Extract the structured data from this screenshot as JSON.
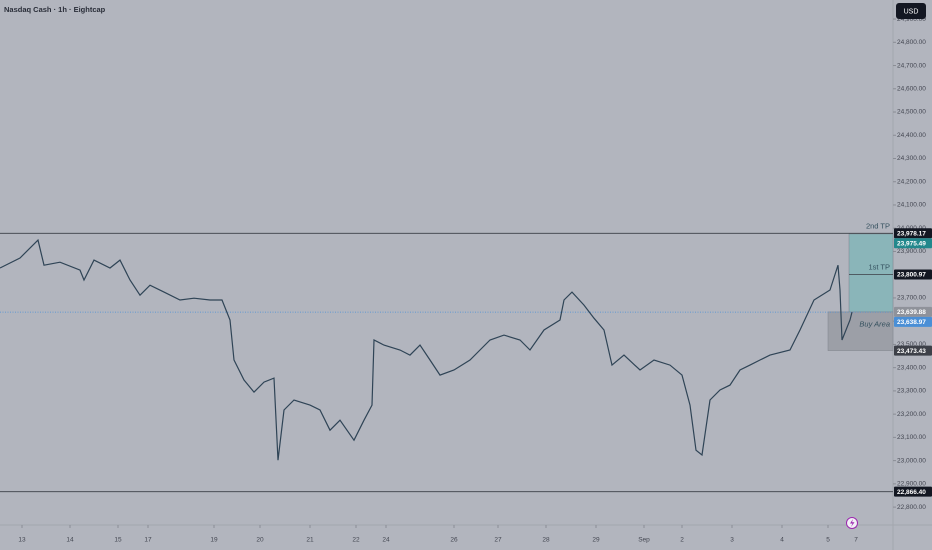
{
  "chart_data": {
    "type": "line",
    "title": "Nasdaq Cash · 1h · Eightcap",
    "currency_button": "USD",
    "color": "#2f4456",
    "x": [
      0,
      10,
      19,
      22,
      30,
      40,
      42,
      47,
      55,
      60,
      65,
      70,
      75,
      82,
      90,
      97,
      105,
      111,
      115,
      117,
      122,
      127,
      132,
      137,
      139,
      142,
      147,
      155,
      160,
      165,
      170,
      177,
      182,
      186,
      187,
      192,
      200,
      205,
      210,
      215,
      220,
      227,
      235,
      240,
      245,
      252,
      260,
      265,
      272,
      280,
      282,
      286,
      292,
      297,
      302,
      306,
      312,
      320,
      327,
      335,
      341,
      345,
      348,
      351,
      355,
      360,
      365,
      370,
      375,
      380,
      385,
      395,
      400,
      407,
      415,
      419,
      420,
      421,
      425,
      426
    ],
    "values": [
      23829,
      23872,
      23949,
      23841,
      23854,
      23820,
      23777,
      23863,
      23829,
      23863,
      23777,
      23712,
      23755,
      23725,
      23691,
      23699,
      23691,
      23691,
      23605,
      23433,
      23347,
      23295,
      23338,
      23355,
      23002,
      23218,
      23261,
      23239,
      23218,
      23131,
      23174,
      23088,
      23174,
      23239,
      23519,
      23497,
      23476,
      23454,
      23497,
      23433,
      23368,
      23390,
      23433,
      23476,
      23519,
      23540,
      23519,
      23476,
      23562,
      23605,
      23691,
      23725,
      23669,
      23613,
      23562,
      23411,
      23454,
      23390,
      23433,
      23411,
      23368,
      23239,
      23045,
      23024,
      23261,
      23304,
      23325,
      23390,
      23411,
      23433,
      23454,
      23476,
      23562,
      23691,
      23734,
      23841,
      23734,
      23519,
      23605,
      23639
    ],
    "xlim": [
      0,
      446.5
    ],
    "ylim": [
      22723,
      24982
    ],
    "xticks": [
      {
        "value": 11,
        "label": "13"
      },
      {
        "value": 35,
        "label": "14"
      },
      {
        "value": 59,
        "label": "15"
      },
      {
        "value": 74,
        "label": "17"
      },
      {
        "value": 107,
        "label": "19"
      },
      {
        "value": 130,
        "label": "20"
      },
      {
        "value": 155,
        "label": "21"
      },
      {
        "value": 178,
        "label": "22"
      },
      {
        "value": 193,
        "label": "24"
      },
      {
        "value": 227,
        "label": "26"
      },
      {
        "value": 249,
        "label": "27"
      },
      {
        "value": 273,
        "label": "28"
      },
      {
        "value": 298,
        "label": "29"
      },
      {
        "value": 322,
        "label": "Sep"
      },
      {
        "value": 341,
        "label": "2"
      },
      {
        "value": 366,
        "label": "3"
      },
      {
        "value": 391,
        "label": "4"
      },
      {
        "value": 414,
        "label": "5"
      },
      {
        "value": 428,
        "label": "7"
      }
    ],
    "yticks": [
      {
        "value": 22800,
        "label": "22,800.00"
      },
      {
        "value": 22900,
        "label": "22,900.00"
      },
      {
        "value": 23000,
        "label": "23,000.00"
      },
      {
        "value": 23100,
        "label": "23,100.00"
      },
      {
        "value": 23200,
        "label": "23,200.00"
      },
      {
        "value": 23300,
        "label": "23,300.00"
      },
      {
        "value": 23400,
        "label": "23,400.00"
      },
      {
        "value": 23500,
        "label": "23,500.00"
      },
      {
        "value": 23600,
        "label": "23,600.00"
      },
      {
        "value": 23700,
        "label": "23,700.00"
      },
      {
        "value": 23900,
        "label": "23,900.00"
      },
      {
        "value": 24000,
        "label": "24,000.00"
      },
      {
        "value": 24100,
        "label": "24,100.00"
      },
      {
        "value": 24200,
        "label": "24,200.00"
      },
      {
        "value": 24300,
        "label": "24,300.00"
      },
      {
        "value": 24400,
        "label": "24,400.00"
      },
      {
        "value": 24500,
        "label": "24,500.00"
      },
      {
        "value": 24600,
        "label": "24,600.00"
      },
      {
        "value": 24700,
        "label": "24,700.00"
      },
      {
        "value": 24800,
        "label": "24,800.00"
      },
      {
        "value": 24900,
        "label": "24,900.00"
      }
    ],
    "levels": [
      {
        "value": 23978.17,
        "label": "23,978.17",
        "color": "#131722",
        "line": "solid"
      },
      {
        "value": 23975.49,
        "label": "23,975.49",
        "color": "#22888c"
      },
      {
        "value": 23800.97,
        "label": "23,800.97",
        "color": "#131722",
        "line": "short"
      },
      {
        "value": 23639.88,
        "label": "23,639.88",
        "color": "#8f929a"
      },
      {
        "value": 23638.97,
        "label": "23,638.97",
        "color": "#4a8fd6",
        "line": "dotted"
      },
      {
        "value": 23473.43,
        "label": "23,473.43",
        "color": "#3d4048"
      },
      {
        "value": 22866.4,
        "label": "22,866.40",
        "color": "#131722",
        "line": "solid"
      }
    ],
    "zones": [
      {
        "x_start": 424.5,
        "low": 23638.97,
        "high": 23975.49,
        "color": "#8ab5b9"
      },
      {
        "x_start": 414,
        "low": 23473.43,
        "high": 23639.88,
        "color": "#9c9fa7"
      }
    ],
    "annotations": [
      {
        "text": "2nd TP",
        "price": 23978.17
      },
      {
        "text": "1st TP",
        "price": 23800.97
      },
      {
        "text": "Buy Area",
        "price": 23556
      }
    ]
  }
}
